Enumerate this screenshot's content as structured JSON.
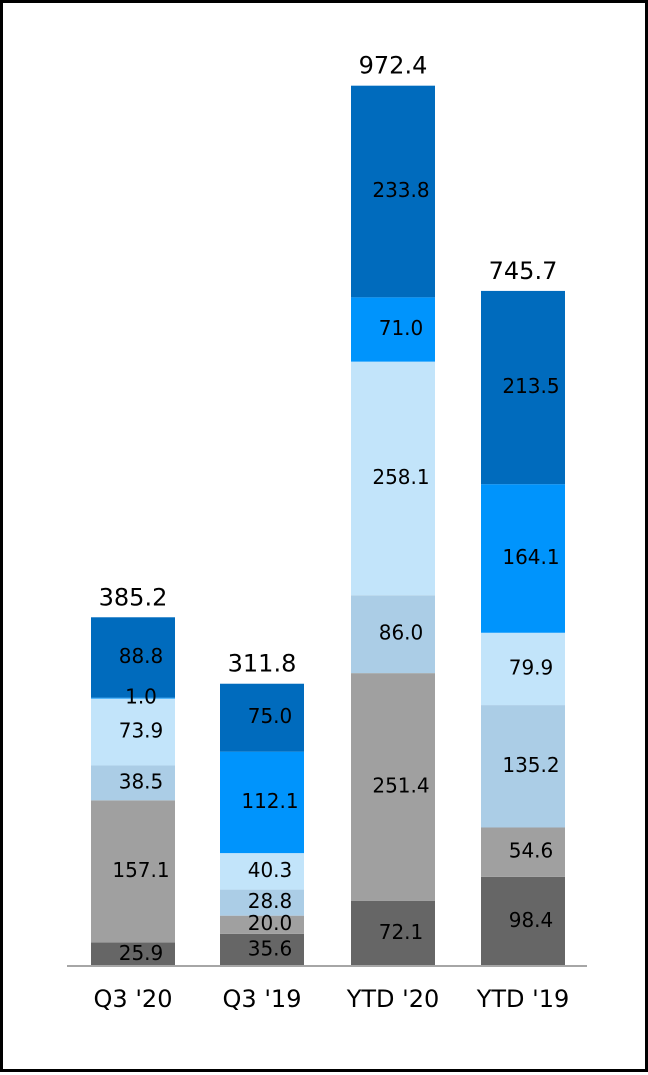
{
  "chart_data": {
    "type": "bar",
    "stacked": true,
    "title": "",
    "xlabel": "",
    "ylabel": "",
    "ylim": [
      0,
      1000
    ],
    "grid": false,
    "legend": "none",
    "categories": [
      "Q3 '20",
      "Q3 '19",
      "YTD '20",
      "YTD '19"
    ],
    "totals": [
      "385.2",
      "311.8",
      "972.4",
      "745.7"
    ],
    "series": [
      {
        "values": [
          25.9,
          35.6,
          72.1,
          98.4
        ],
        "labels": [
          "25.9",
          "35.6",
          "72.1",
          "98.4"
        ],
        "color": "#666666"
      },
      {
        "values": [
          157.1,
          20.0,
          251.4,
          54.6
        ],
        "labels": [
          "157.1",
          "20.0",
          "251.4",
          "54.6"
        ],
        "color": "#a0a0a0"
      },
      {
        "values": [
          38.5,
          28.8,
          86.0,
          135.2
        ],
        "labels": [
          "38.5",
          "28.8",
          "86.0",
          "135.2"
        ],
        "color": "#abcde6"
      },
      {
        "values": [
          73.9,
          40.3,
          258.1,
          79.9
        ],
        "labels": [
          "73.9",
          "40.3",
          "258.1",
          "79.9"
        ],
        "color": "#c2e4fa"
      },
      {
        "values": [
          1.0,
          112.1,
          71.0,
          164.1
        ],
        "labels": [
          "1.0",
          "112.1",
          "71.0",
          "164.1"
        ],
        "color": "#0094fc"
      },
      {
        "values": [
          88.8,
          75.0,
          233.8,
          213.5
        ],
        "labels": [
          "88.8",
          "75.0",
          "233.8",
          "213.5"
        ],
        "color": "#006bbd"
      }
    ]
  }
}
